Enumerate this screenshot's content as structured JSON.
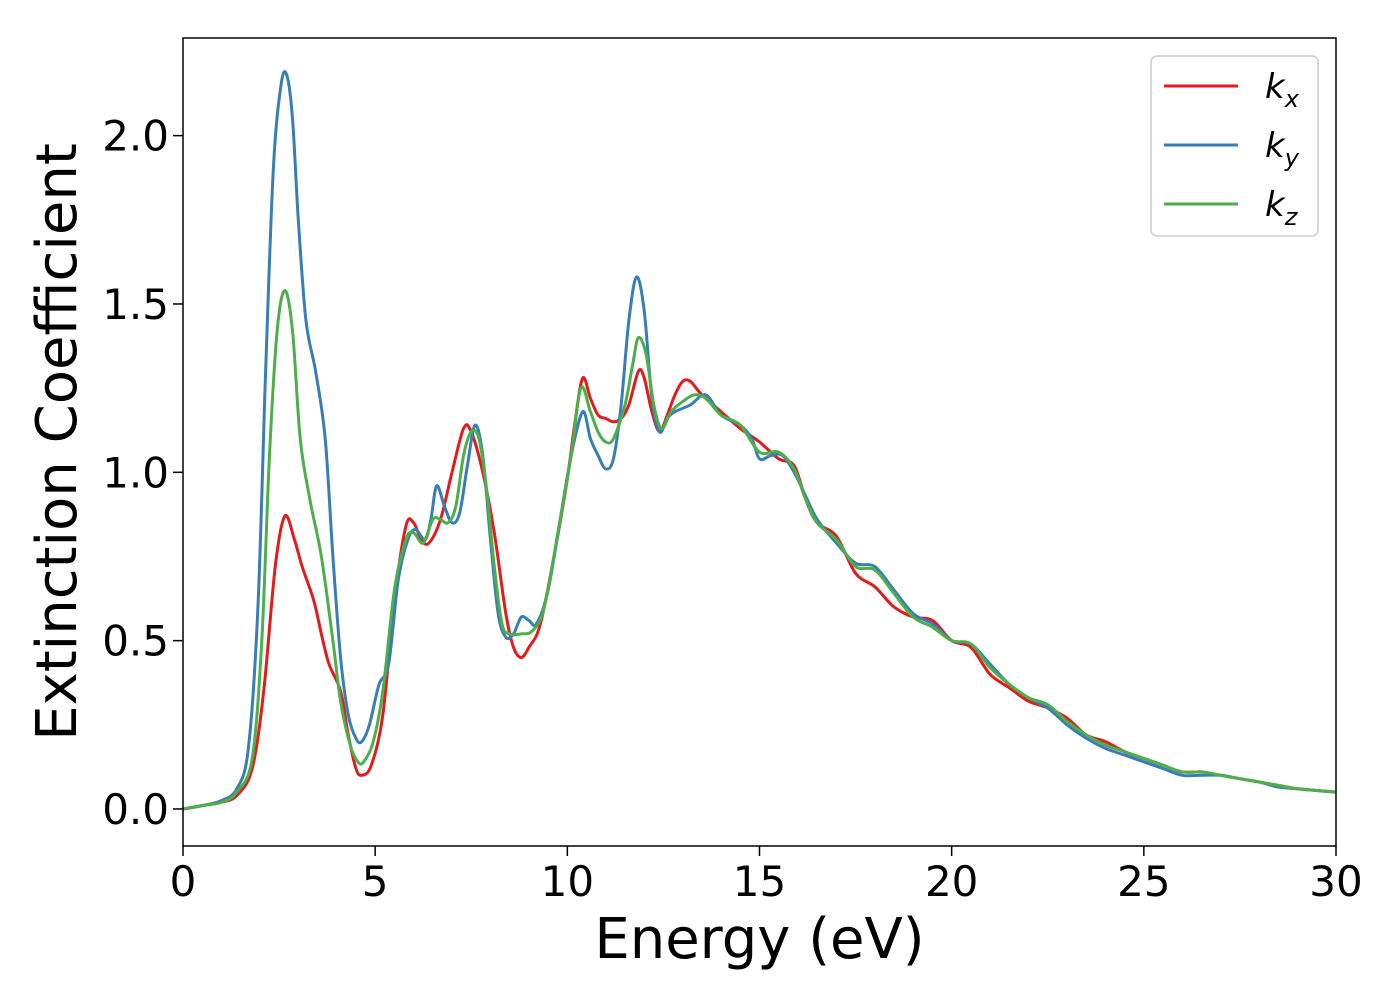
{
  "chart_data": {
    "type": "line",
    "title": "",
    "xlabel": "Energy (eV)",
    "ylabel": "Extinction Coefficient",
    "xlim": [
      0,
      30
    ],
    "ylim": [
      -0.11,
      2.29
    ],
    "xticks": [
      0,
      5,
      10,
      15,
      20,
      25,
      30
    ],
    "xtick_labels": [
      "0",
      "5",
      "10",
      "15",
      "20",
      "25",
      "30"
    ],
    "yticks": [
      0.0,
      0.5,
      1.0,
      1.5,
      2.0
    ],
    "ytick_labels": [
      "0.0",
      "0.5",
      "1.0",
      "1.5",
      "2.0"
    ],
    "grid": false,
    "legend_position": "top-right",
    "series": [
      {
        "name": "kx",
        "label_base": "k",
        "label_sub": "x",
        "color": "#e41a1c",
        "points": [
          [
            0,
            0
          ],
          [
            0.5,
            0.01
          ],
          [
            1,
            0.02
          ],
          [
            1.4,
            0.04
          ],
          [
            1.8,
            0.12
          ],
          [
            2.1,
            0.35
          ],
          [
            2.4,
            0.72
          ],
          [
            2.65,
            0.87
          ],
          [
            2.9,
            0.8
          ],
          [
            3.1,
            0.72
          ],
          [
            3.4,
            0.62
          ],
          [
            3.6,
            0.52
          ],
          [
            3.8,
            0.43
          ],
          [
            4.1,
            0.35
          ],
          [
            4.3,
            0.22
          ],
          [
            4.5,
            0.12
          ],
          [
            4.65,
            0.1
          ],
          [
            4.9,
            0.13
          ],
          [
            5.2,
            0.28
          ],
          [
            5.5,
            0.62
          ],
          [
            5.8,
            0.84
          ],
          [
            6.0,
            0.85
          ],
          [
            6.2,
            0.8
          ],
          [
            6.4,
            0.79
          ],
          [
            6.7,
            0.86
          ],
          [
            7.0,
            1.0
          ],
          [
            7.3,
            1.13
          ],
          [
            7.5,
            1.12
          ],
          [
            7.8,
            1.0
          ],
          [
            8.1,
            0.82
          ],
          [
            8.4,
            0.58
          ],
          [
            8.6,
            0.48
          ],
          [
            8.8,
            0.45
          ],
          [
            9.0,
            0.48
          ],
          [
            9.3,
            0.55
          ],
          [
            9.7,
            0.78
          ],
          [
            10.0,
            0.98
          ],
          [
            10.2,
            1.15
          ],
          [
            10.4,
            1.28
          ],
          [
            10.6,
            1.22
          ],
          [
            10.8,
            1.17
          ],
          [
            11.0,
            1.16
          ],
          [
            11.2,
            1.15
          ],
          [
            11.4,
            1.16
          ],
          [
            11.6,
            1.2
          ],
          [
            11.85,
            1.3
          ],
          [
            12.0,
            1.28
          ],
          [
            12.2,
            1.18
          ],
          [
            12.4,
            1.12
          ],
          [
            12.6,
            1.17
          ],
          [
            12.8,
            1.23
          ],
          [
            13.0,
            1.27
          ],
          [
            13.2,
            1.27
          ],
          [
            13.5,
            1.23
          ],
          [
            14.0,
            1.18
          ],
          [
            14.5,
            1.13
          ],
          [
            15.0,
            1.09
          ],
          [
            15.5,
            1.04
          ],
          [
            15.9,
            1.02
          ],
          [
            16.2,
            0.92
          ],
          [
            16.5,
            0.85
          ],
          [
            17.0,
            0.81
          ],
          [
            17.5,
            0.7
          ],
          [
            18.0,
            0.66
          ],
          [
            18.5,
            0.6
          ],
          [
            19.0,
            0.57
          ],
          [
            19.5,
            0.56
          ],
          [
            20.0,
            0.5
          ],
          [
            20.5,
            0.48
          ],
          [
            21.0,
            0.4
          ],
          [
            21.5,
            0.36
          ],
          [
            22.0,
            0.32
          ],
          [
            22.5,
            0.3
          ],
          [
            23.0,
            0.27
          ],
          [
            23.5,
            0.22
          ],
          [
            24.0,
            0.2
          ],
          [
            24.5,
            0.17
          ],
          [
            25.0,
            0.15
          ],
          [
            25.5,
            0.13
          ],
          [
            26.0,
            0.11
          ],
          [
            26.5,
            0.11
          ],
          [
            27.0,
            0.1
          ],
          [
            27.5,
            0.09
          ],
          [
            28.0,
            0.08
          ],
          [
            28.5,
            0.07
          ],
          [
            29.0,
            0.06
          ],
          [
            29.5,
            0.055
          ],
          [
            30.0,
            0.05
          ]
        ]
      },
      {
        "name": "ky",
        "label_base": "k",
        "label_sub": "y",
        "color": "#377eb8",
        "points": [
          [
            0,
            0
          ],
          [
            0.5,
            0.01
          ],
          [
            1,
            0.025
          ],
          [
            1.4,
            0.06
          ],
          [
            1.7,
            0.18
          ],
          [
            1.95,
            0.6
          ],
          [
            2.15,
            1.3
          ],
          [
            2.35,
            1.9
          ],
          [
            2.55,
            2.15
          ],
          [
            2.7,
            2.18
          ],
          [
            2.85,
            2.05
          ],
          [
            3.0,
            1.75
          ],
          [
            3.2,
            1.45
          ],
          [
            3.45,
            1.3
          ],
          [
            3.7,
            1.1
          ],
          [
            3.9,
            0.75
          ],
          [
            4.1,
            0.45
          ],
          [
            4.3,
            0.28
          ],
          [
            4.5,
            0.21
          ],
          [
            4.65,
            0.2
          ],
          [
            4.85,
            0.25
          ],
          [
            5.1,
            0.37
          ],
          [
            5.35,
            0.43
          ],
          [
            5.6,
            0.68
          ],
          [
            5.85,
            0.8
          ],
          [
            6.05,
            0.83
          ],
          [
            6.3,
            0.8
          ],
          [
            6.45,
            0.86
          ],
          [
            6.6,
            0.96
          ],
          [
            6.8,
            0.9
          ],
          [
            7.0,
            0.85
          ],
          [
            7.2,
            0.88
          ],
          [
            7.4,
            1.02
          ],
          [
            7.6,
            1.14
          ],
          [
            7.8,
            1.05
          ],
          [
            8.0,
            0.8
          ],
          [
            8.2,
            0.58
          ],
          [
            8.4,
            0.51
          ],
          [
            8.6,
            0.52
          ],
          [
            8.8,
            0.57
          ],
          [
            9.0,
            0.56
          ],
          [
            9.2,
            0.55
          ],
          [
            9.5,
            0.65
          ],
          [
            9.8,
            0.85
          ],
          [
            10.1,
            1.05
          ],
          [
            10.4,
            1.18
          ],
          [
            10.6,
            1.1
          ],
          [
            10.8,
            1.05
          ],
          [
            11.0,
            1.01
          ],
          [
            11.2,
            1.04
          ],
          [
            11.4,
            1.2
          ],
          [
            11.6,
            1.45
          ],
          [
            11.8,
            1.58
          ],
          [
            12.0,
            1.48
          ],
          [
            12.2,
            1.22
          ],
          [
            12.4,
            1.12
          ],
          [
            12.6,
            1.16
          ],
          [
            12.8,
            1.18
          ],
          [
            13.2,
            1.2
          ],
          [
            13.6,
            1.23
          ],
          [
            14.0,
            1.17
          ],
          [
            14.5,
            1.14
          ],
          [
            14.8,
            1.1
          ],
          [
            15.0,
            1.04
          ],
          [
            15.3,
            1.05
          ],
          [
            15.6,
            1.05
          ],
          [
            15.9,
            1.0
          ],
          [
            16.2,
            0.93
          ],
          [
            16.5,
            0.86
          ],
          [
            17.0,
            0.79
          ],
          [
            17.5,
            0.73
          ],
          [
            18.0,
            0.72
          ],
          [
            18.5,
            0.65
          ],
          [
            19.0,
            0.58
          ],
          [
            19.5,
            0.55
          ],
          [
            20.0,
            0.5
          ],
          [
            20.5,
            0.49
          ],
          [
            21.0,
            0.43
          ],
          [
            21.5,
            0.37
          ],
          [
            22.0,
            0.33
          ],
          [
            22.5,
            0.3
          ],
          [
            23.0,
            0.25
          ],
          [
            23.5,
            0.21
          ],
          [
            24.0,
            0.18
          ],
          [
            24.5,
            0.16
          ],
          [
            25.0,
            0.14
          ],
          [
            25.5,
            0.12
          ],
          [
            26.0,
            0.1
          ],
          [
            26.5,
            0.1
          ],
          [
            27.0,
            0.1
          ],
          [
            27.5,
            0.09
          ],
          [
            28.0,
            0.08
          ],
          [
            28.5,
            0.065
          ],
          [
            29.0,
            0.06
          ],
          [
            29.5,
            0.055
          ],
          [
            30.0,
            0.05
          ]
        ]
      },
      {
        "name": "kz",
        "label_base": "k",
        "label_sub": "z",
        "color": "#4daf4a",
        "points": [
          [
            0,
            0
          ],
          [
            0.5,
            0.01
          ],
          [
            1,
            0.02
          ],
          [
            1.4,
            0.05
          ],
          [
            1.8,
            0.15
          ],
          [
            2.05,
            0.5
          ],
          [
            2.25,
            1.05
          ],
          [
            2.45,
            1.42
          ],
          [
            2.65,
            1.54
          ],
          [
            2.85,
            1.42
          ],
          [
            3.05,
            1.1
          ],
          [
            3.3,
            0.92
          ],
          [
            3.6,
            0.75
          ],
          [
            3.9,
            0.5
          ],
          [
            4.1,
            0.32
          ],
          [
            4.35,
            0.19
          ],
          [
            4.55,
            0.14
          ],
          [
            4.7,
            0.14
          ],
          [
            4.95,
            0.2
          ],
          [
            5.2,
            0.35
          ],
          [
            5.5,
            0.65
          ],
          [
            5.8,
            0.8
          ],
          [
            6.0,
            0.82
          ],
          [
            6.25,
            0.79
          ],
          [
            6.5,
            0.86
          ],
          [
            6.7,
            0.86
          ],
          [
            6.9,
            0.85
          ],
          [
            7.1,
            0.9
          ],
          [
            7.3,
            1.05
          ],
          [
            7.5,
            1.12
          ],
          [
            7.7,
            1.1
          ],
          [
            7.9,
            0.95
          ],
          [
            8.1,
            0.72
          ],
          [
            8.3,
            0.55
          ],
          [
            8.5,
            0.52
          ],
          [
            8.8,
            0.52
          ],
          [
            9.1,
            0.53
          ],
          [
            9.4,
            0.6
          ],
          [
            9.8,
            0.85
          ],
          [
            10.1,
            1.05
          ],
          [
            10.35,
            1.25
          ],
          [
            10.6,
            1.18
          ],
          [
            10.8,
            1.12
          ],
          [
            11.0,
            1.09
          ],
          [
            11.2,
            1.1
          ],
          [
            11.5,
            1.2
          ],
          [
            11.7,
            1.32
          ],
          [
            11.85,
            1.4
          ],
          [
            12.05,
            1.35
          ],
          [
            12.25,
            1.2
          ],
          [
            12.45,
            1.13
          ],
          [
            12.7,
            1.18
          ],
          [
            13.0,
            1.21
          ],
          [
            13.3,
            1.23
          ],
          [
            13.6,
            1.22
          ],
          [
            14.0,
            1.17
          ],
          [
            14.5,
            1.14
          ],
          [
            15.0,
            1.06
          ],
          [
            15.5,
            1.06
          ],
          [
            15.9,
            1.01
          ],
          [
            16.2,
            0.92
          ],
          [
            16.5,
            0.85
          ],
          [
            17.0,
            0.8
          ],
          [
            17.5,
            0.72
          ],
          [
            18.0,
            0.71
          ],
          [
            18.5,
            0.64
          ],
          [
            19.0,
            0.57
          ],
          [
            19.5,
            0.54
          ],
          [
            20.0,
            0.5
          ],
          [
            20.5,
            0.49
          ],
          [
            21.0,
            0.42
          ],
          [
            21.5,
            0.37
          ],
          [
            22.0,
            0.33
          ],
          [
            22.5,
            0.31
          ],
          [
            23.0,
            0.26
          ],
          [
            23.5,
            0.22
          ],
          [
            24.0,
            0.19
          ],
          [
            24.5,
            0.17
          ],
          [
            25.0,
            0.15
          ],
          [
            25.5,
            0.13
          ],
          [
            26.0,
            0.11
          ],
          [
            26.5,
            0.11
          ],
          [
            27.0,
            0.1
          ],
          [
            27.5,
            0.09
          ],
          [
            28.0,
            0.08
          ],
          [
            28.5,
            0.07
          ],
          [
            29.0,
            0.06
          ],
          [
            29.5,
            0.055
          ],
          [
            30.0,
            0.05
          ]
        ]
      }
    ]
  }
}
